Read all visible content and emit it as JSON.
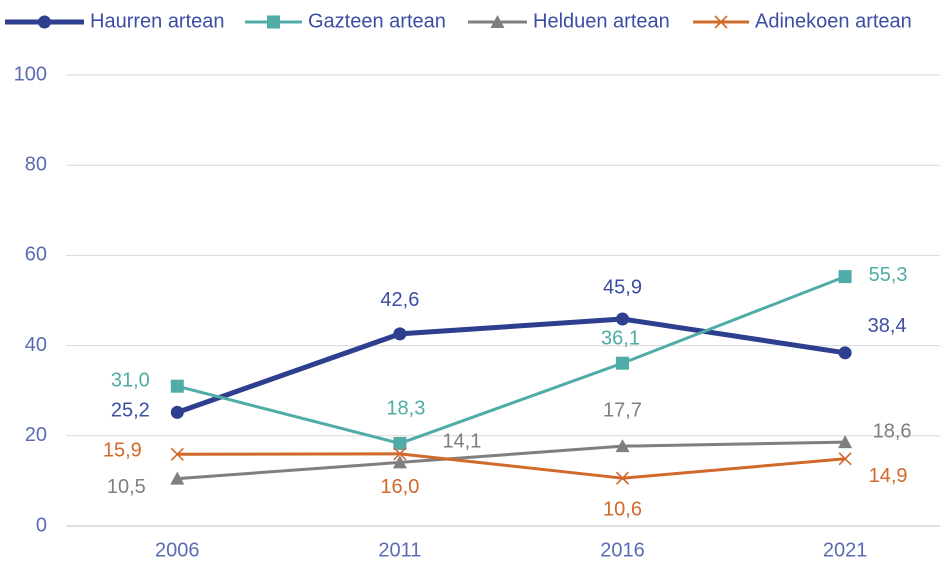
{
  "chart_data": {
    "type": "line",
    "categories": [
      "2006",
      "2011",
      "2016",
      "2021"
    ],
    "ylim": [
      0,
      100
    ],
    "yticks": [
      0,
      20,
      40,
      60,
      80,
      100
    ],
    "grid": true,
    "series": [
      {
        "name": "Haurren artean",
        "color": "#2f3f8f",
        "marker": "circle",
        "values": [
          25.2,
          42.6,
          45.9,
          38.4
        ],
        "value_labels": [
          "25,2",
          "42,6",
          "45,9",
          "38,4"
        ]
      },
      {
        "name": "Gazteen artean",
        "color": "#4faca6",
        "marker": "square",
        "values": [
          31.0,
          18.3,
          36.1,
          55.3
        ],
        "value_labels": [
          "31,0",
          "18,3",
          "36,1",
          "55,3"
        ]
      },
      {
        "name": "Helduen artean",
        "color": "#7f7f7f",
        "marker": "triangle",
        "values": [
          10.5,
          14.1,
          17.7,
          18.6
        ],
        "value_labels": [
          "10,5",
          "14,1",
          "17,7",
          "18,6"
        ]
      },
      {
        "name": "Adinekoen artean",
        "color": "#d0692a",
        "marker": "x",
        "values": [
          15.9,
          16.0,
          10.6,
          14.9
        ],
        "value_labels": [
          "15,9",
          "16,0",
          "10,6",
          "14,9"
        ]
      }
    ]
  }
}
